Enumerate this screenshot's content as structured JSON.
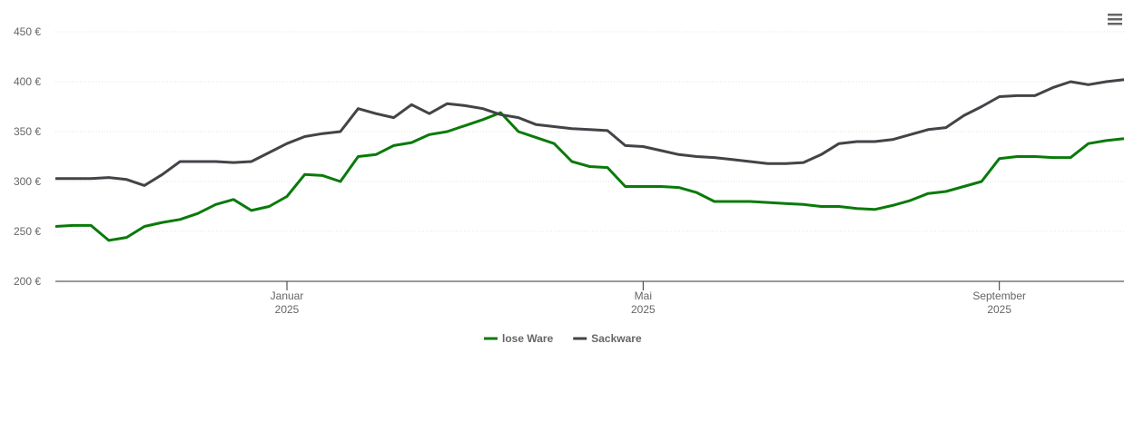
{
  "chart_data": {
    "type": "line",
    "categories": [
      null,
      null,
      null,
      null,
      null,
      null,
      null,
      null,
      null,
      null,
      null,
      null,
      null,
      "Januar 2025",
      null,
      null,
      null,
      null,
      null,
      null,
      null,
      null,
      null,
      null,
      null,
      null,
      null,
      null,
      null,
      null,
      null,
      null,
      null,
      "Mai 2025",
      null,
      null,
      null,
      null,
      null,
      null,
      null,
      null,
      null,
      null,
      null,
      null,
      null,
      null,
      null,
      null,
      null,
      null,
      null,
      "September 2025",
      null,
      null,
      null,
      null,
      null,
      null,
      null
    ],
    "series": [
      {
        "name": "lose Ware",
        "color": "#0a7a0a",
        "values": [
          255,
          256,
          256,
          241,
          244,
          255,
          259,
          262,
          268,
          277,
          282,
          271,
          275,
          285,
          307,
          306,
          300,
          325,
          327,
          336,
          339,
          347,
          350,
          356,
          362,
          369,
          350,
          344,
          338,
          320,
          315,
          314,
          295,
          295,
          295,
          294,
          289,
          280,
          280,
          280,
          279,
          278,
          277,
          275,
          275,
          273,
          272,
          276,
          281,
          288,
          290,
          295,
          300,
          323,
          325,
          325,
          324,
          324,
          338,
          341,
          343
        ]
      },
      {
        "name": "Sackware",
        "color": "#434348",
        "values": [
          303,
          303,
          303,
          304,
          302,
          296,
          307,
          320,
          320,
          320,
          319,
          320,
          329,
          338,
          345,
          348,
          350,
          373,
          368,
          364,
          377,
          368,
          378,
          376,
          373,
          367,
          364,
          357,
          355,
          353,
          352,
          351,
          336,
          335,
          331,
          327,
          325,
          324,
          322,
          320,
          318,
          318,
          319,
          327,
          338,
          340,
          340,
          342,
          347,
          352,
          354,
          366,
          375,
          385,
          386,
          386,
          394,
          400,
          397,
          400,
          402
        ]
      }
    ],
    "ylim": [
      200,
      450
    ],
    "yticks": [
      {
        "value": 200,
        "label": "200 €"
      },
      {
        "value": 250,
        "label": "250 €"
      },
      {
        "value": 300,
        "label": "300 €"
      },
      {
        "value": 350,
        "label": "350 €"
      },
      {
        "value": 400,
        "label": "400 €"
      },
      {
        "value": 450,
        "label": "450 €"
      }
    ],
    "grid": true,
    "legend": "bottom"
  }
}
